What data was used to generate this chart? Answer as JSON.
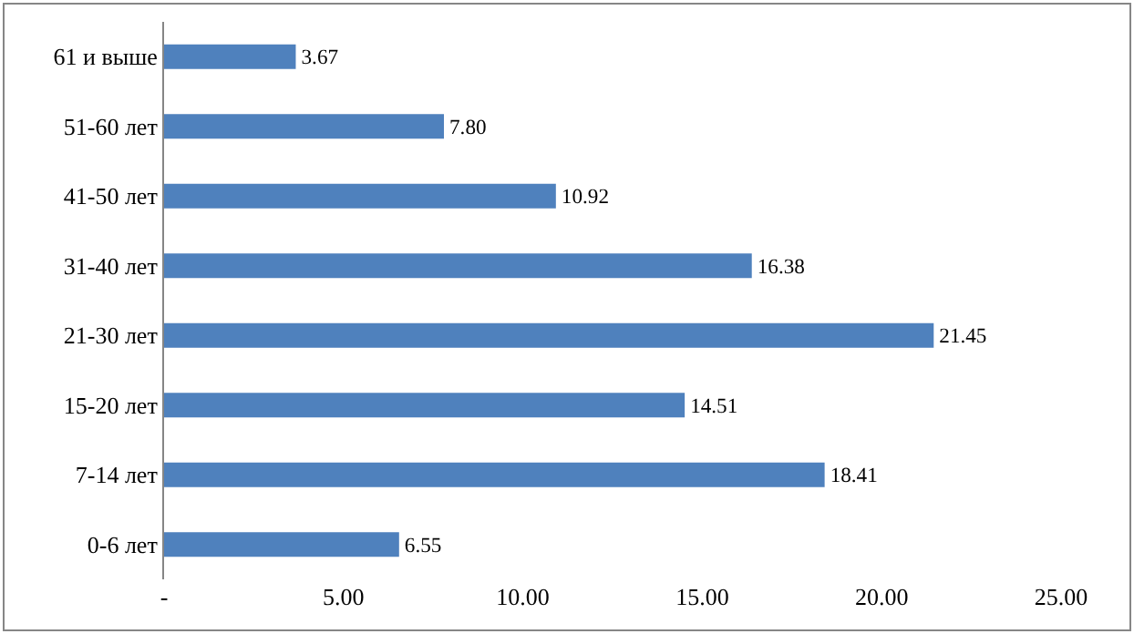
{
  "chart_data": {
    "type": "bar",
    "categories": [
      "61 и выше",
      "51-60 лет",
      "41-50 лет",
      "31-40 лет",
      "21-30 лет",
      "15-20 лет",
      "7-14 лет",
      "0-6 лет"
    ],
    "values": [
      3.67,
      7.8,
      10.92,
      16.38,
      21.45,
      14.51,
      18.41,
      6.55
    ],
    "value_labels": [
      "3.67",
      "7.80",
      "10.92",
      "16.38",
      "21.45",
      "14.51",
      "18.41",
      "6.55"
    ],
    "color": "#4f81bd",
    "xlim": [
      0,
      25
    ],
    "xticks": [
      {
        "value": 0,
        "label": "-"
      },
      {
        "value": 5,
        "label": "5.00"
      },
      {
        "value": 10,
        "label": "10.00"
      },
      {
        "value": 15,
        "label": "15.00"
      },
      {
        "value": 20,
        "label": "20.00"
      },
      {
        "value": 25,
        "label": "25.00"
      }
    ],
    "orientation": "horizontal"
  }
}
